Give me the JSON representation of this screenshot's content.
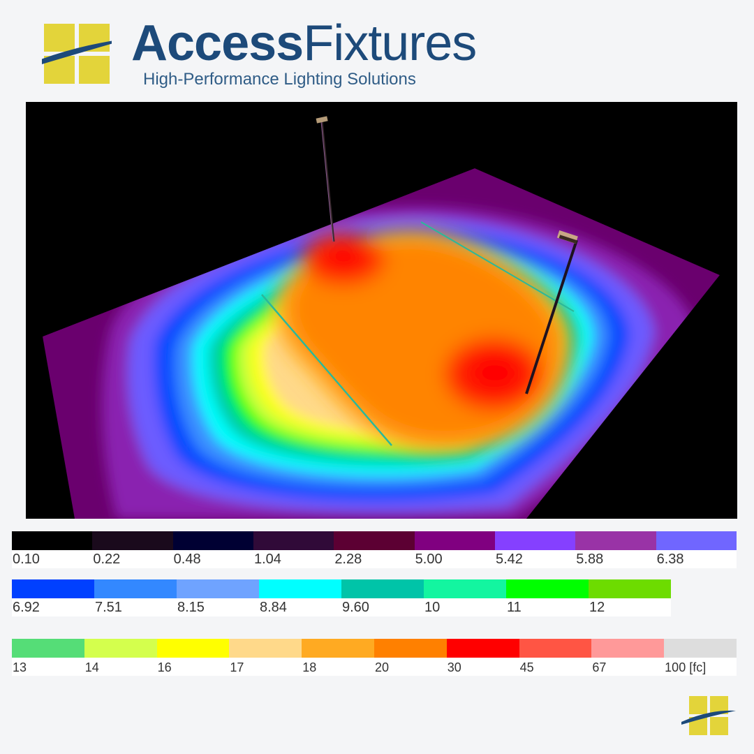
{
  "brand": {
    "name_bold": "Access",
    "name_light": "Fixtures",
    "tagline": "High-Performance Lighting Solutions"
  },
  "legend": {
    "unit": "[fc]",
    "rows": [
      [
        {
          "label": "0.10",
          "color": "#000000"
        },
        {
          "label": "0.22",
          "color": "#1a0a1c"
        },
        {
          "label": "0.48",
          "color": "#000033"
        },
        {
          "label": "1.04",
          "color": "#300a38"
        },
        {
          "label": "2.28",
          "color": "#5c0033"
        },
        {
          "label": "5.00",
          "color": "#800080"
        },
        {
          "label": "5.42",
          "color": "#8540ff"
        },
        {
          "label": "5.88",
          "color": "#9933a6"
        },
        {
          "label": "6.38",
          "color": "#7066ff"
        }
      ],
      [
        {
          "label": "6.92",
          "color": "#0040ff"
        },
        {
          "label": "7.51",
          "color": "#3388ff"
        },
        {
          "label": "8.15",
          "color": "#6fa3ff"
        },
        {
          "label": "8.84",
          "color": "#00ffff"
        },
        {
          "label": "9.60",
          "color": "#00c4a8"
        },
        {
          "label": "10",
          "color": "#13f5a0"
        },
        {
          "label": "11",
          "color": "#00ff00"
        },
        {
          "label": "12",
          "color": "#6ddc00"
        }
      ],
      [
        {
          "label": "13",
          "color": "#55dd77"
        },
        {
          "label": "14",
          "color": "#d4ff4d"
        },
        {
          "label": "16",
          "color": "#ffff00"
        },
        {
          "label": "17",
          "color": "#ffd98a"
        },
        {
          "label": "18",
          "color": "#ffaa22"
        },
        {
          "label": "20",
          "color": "#ff8000"
        },
        {
          "label": "30",
          "color": "#ff0000"
        },
        {
          "label": "45",
          "color": "#ff5544"
        },
        {
          "label": "67",
          "color": "#ff9999"
        },
        {
          "label": "100 [fc]",
          "color": "#dddddd"
        }
      ]
    ]
  },
  "colors": {
    "brand_blue": "#1d4a7a",
    "brand_yellow": "#e3d43a",
    "render_background": "#000000"
  }
}
